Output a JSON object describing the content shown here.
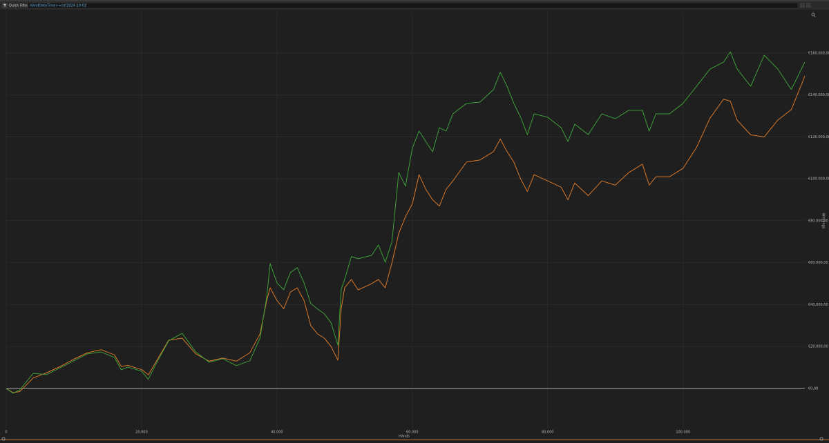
{
  "toolbar": {
    "button": "Quick Filters",
    "filter": "HandDateTime>=cd'2024-10-01'"
  },
  "chart_data": {
    "type": "line",
    "x_label": "Hands",
    "y_label": "Winnings",
    "x": [
      0,
      1000,
      2000,
      4000,
      6000,
      8000,
      10000,
      12000,
      14000,
      16000,
      17000,
      18000,
      20000,
      21000,
      22000,
      24000,
      26000,
      28000,
      30000,
      32000,
      34000,
      36000,
      37500,
      38500,
      39000,
      40000,
      41000,
      42000,
      43000,
      44000,
      45000,
      46000,
      47000,
      48000,
      49000,
      49500,
      50000,
      51000,
      52000,
      54000,
      55000,
      56000,
      57000,
      58000,
      59000,
      60000,
      61000,
      62000,
      63000,
      64000,
      65000,
      66000,
      68000,
      70000,
      72000,
      73000,
      74000,
      75000,
      76000,
      77000,
      78000,
      80000,
      82000,
      83000,
      84000,
      86000,
      88000,
      90000,
      92000,
      94000,
      95000,
      96000,
      98000,
      100000,
      102000,
      104000,
      106000,
      107000,
      108000,
      110000,
      112000,
      114000,
      116000,
      118000
    ],
    "series": [
      {
        "color": "#3f9f38",
        "values": [
          0,
          -2300,
          -700,
          7200,
          6600,
          9900,
          13200,
          16500,
          17400,
          14800,
          8900,
          10200,
          8200,
          4300,
          10900,
          22700,
          26300,
          17400,
          12500,
          14200,
          10900,
          13200,
          24000,
          43800,
          59600,
          50400,
          47100,
          55300,
          57600,
          50400,
          40500,
          37900,
          35600,
          31300,
          20700,
          47100,
          52000,
          62900,
          61900,
          63500,
          68500,
          60200,
          70100,
          103000,
          96500,
          114600,
          122800,
          117800,
          112900,
          124400,
          122800,
          131000,
          136000,
          136600,
          142600,
          150800,
          144200,
          136000,
          129400,
          121100,
          131000,
          129400,
          124400,
          117800,
          126100,
          121100,
          131000,
          128700,
          132700,
          132700,
          122800,
          131000,
          131000,
          136000,
          144200,
          152400,
          155700,
          160600,
          152400,
          144200,
          159000,
          152400,
          142600,
          155700
        ]
      },
      {
        "color": "#d9782a",
        "values": [
          0,
          -2000,
          -1500,
          5000,
          7500,
          10500,
          14000,
          17000,
          18500,
          16000,
          10500,
          11000,
          9000,
          6500,
          12000,
          23000,
          24000,
          16500,
          13000,
          14500,
          13000,
          17000,
          26000,
          42000,
          48000,
          42000,
          38000,
          46000,
          48000,
          42000,
          30000,
          26000,
          24000,
          20000,
          13500,
          38000,
          48000,
          52000,
          47000,
          50000,
          52000,
          48000,
          60000,
          74000,
          82000,
          88000,
          102000,
          95000,
          90000,
          87000,
          95000,
          99000,
          108000,
          109000,
          113000,
          119000,
          113000,
          108000,
          100000,
          94000,
          102000,
          99000,
          96000,
          90000,
          98000,
          92000,
          99000,
          97000,
          103000,
          107000,
          97000,
          101000,
          101000,
          105000,
          115000,
          129000,
          138000,
          137000,
          128000,
          121000,
          120000,
          128000,
          133000,
          149000
        ]
      }
    ],
    "xlim": [
      0,
      118000
    ],
    "ylim": [
      -18800,
      179400
    ],
    "xticks": [
      0,
      {
        "value": 20000,
        "label": "20.000"
      },
      {
        "value": 40000,
        "label": "40.000"
      },
      {
        "value": 60000,
        "label": "60.000"
      },
      {
        "value": 80000,
        "label": "80.000"
      },
      {
        "value": 100000,
        "label": "100.000"
      }
    ],
    "yticks": [
      {
        "value": 0,
        "label": "€0,00"
      },
      {
        "value": 20000,
        "label": "€20.000,00"
      },
      {
        "value": 40000,
        "label": "€40.000,00"
      },
      {
        "value": 60000,
        "label": "€60.000,00"
      },
      {
        "value": 80000,
        "label": "€80.000,00"
      },
      {
        "value": 100000,
        "label": "€100.000,00"
      },
      {
        "value": 120000,
        "label": "€120.000,00"
      },
      {
        "value": 140000,
        "label": "€140.000,00"
      },
      {
        "value": 160000,
        "label": "€160.000,00"
      }
    ],
    "grid": true,
    "zero_line": true
  }
}
